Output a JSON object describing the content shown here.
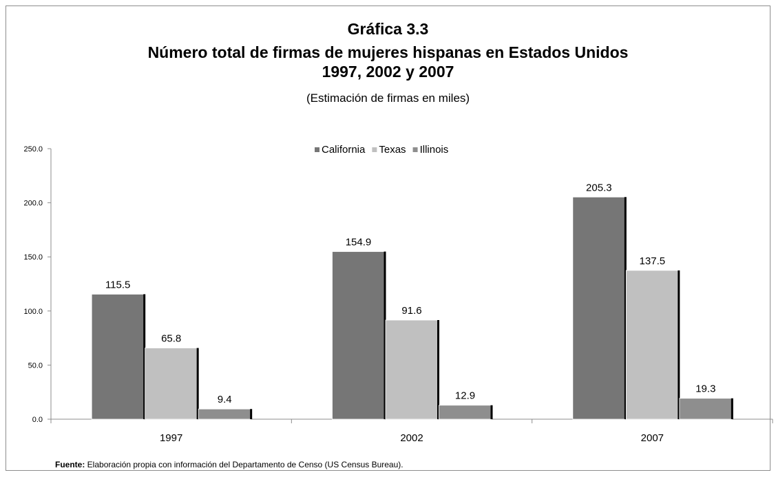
{
  "chart_data": {
    "type": "bar",
    "title": "Gráfica 3.3",
    "title_line2": "Número total de firmas de mujeres hispanas en Estados Unidos",
    "title_line3": "1997, 2002 y 2007",
    "subtitle": "(Estimación de firmas en miles)",
    "categories": [
      "1997",
      "2002",
      "2007"
    ],
    "series": [
      {
        "name": "California",
        "values": [
          115.5,
          154.9,
          205.3
        ],
        "color": "#767676"
      },
      {
        "name": "Texas",
        "values": [
          65.8,
          91.6,
          137.5
        ],
        "color": "#c0c0c0"
      },
      {
        "name": "Illinois",
        "values": [
          9.4,
          12.9,
          19.3
        ],
        "color": "#8e8e8e"
      }
    ],
    "data_labels": [
      [
        "115.5",
        "65.8",
        "9.4"
      ],
      [
        "154.9",
        "91.6",
        "12.9"
      ],
      [
        "205.3",
        "137.5",
        "19.3"
      ]
    ],
    "yticks": [
      "0.0",
      "50.0",
      "100.0",
      "150.0",
      "200.0",
      "250.0"
    ],
    "ylim": [
      0,
      250
    ],
    "xlabel": "",
    "ylabel": "",
    "grid": false,
    "legend_position": "top-center"
  },
  "source": {
    "label": "Fuente:",
    "text": " Elaboración propia con información del Departamento de Censo (US Census Bureau)."
  }
}
